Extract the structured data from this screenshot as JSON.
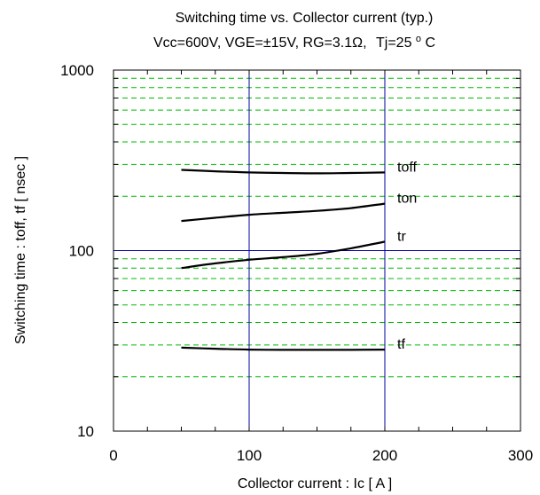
{
  "chart_data": {
    "type": "line",
    "title": "Switching time vs. Collector current (typ.)",
    "subtitle_parts": {
      "conditions": "Vcc=600V, VGE=±15V, RG=3.1Ω,",
      "tj_prefix": "Tj=25",
      "tj_degree": "o",
      "tj_unit": "C"
    },
    "xlabel": "Collector current : Ic [ A ]",
    "ylabel": "Switching time : toff, tf [ nsec ]",
    "xlim": [
      0,
      300
    ],
    "ylim": [
      10,
      1000
    ],
    "yscale": "log",
    "x_ticks": [
      0,
      100,
      200,
      300
    ],
    "x_tick_labels": [
      "0",
      "100",
      "200",
      "300"
    ],
    "y_ticks": [
      10,
      100,
      1000
    ],
    "y_tick_labels": [
      "10",
      "100",
      "1000"
    ],
    "grid": {
      "major_color": "#0000a0",
      "minor_color": "#00bb00",
      "minor_style": "dashed"
    },
    "line_color": "#000000",
    "series": [
      {
        "name": "toff",
        "x": [
          50,
          75,
          100,
          125,
          150,
          175,
          200
        ],
        "y": [
          280,
          275,
          271,
          269,
          268,
          269,
          271
        ]
      },
      {
        "name": "ton",
        "x": [
          50,
          75,
          100,
          125,
          150,
          175,
          200
        ],
        "y": [
          146,
          152,
          158,
          162,
          166,
          172,
          182
        ]
      },
      {
        "name": "tr",
        "x": [
          50,
          75,
          100,
          125,
          150,
          175,
          200
        ],
        "y": [
          80,
          85,
          89,
          92,
          96,
          103,
          112
        ]
      },
      {
        "name": "tf",
        "x": [
          50,
          75,
          100,
          125,
          150,
          175,
          200
        ],
        "y": [
          29,
          28.6,
          28.3,
          28.2,
          28.2,
          28.2,
          28.3
        ]
      }
    ]
  }
}
